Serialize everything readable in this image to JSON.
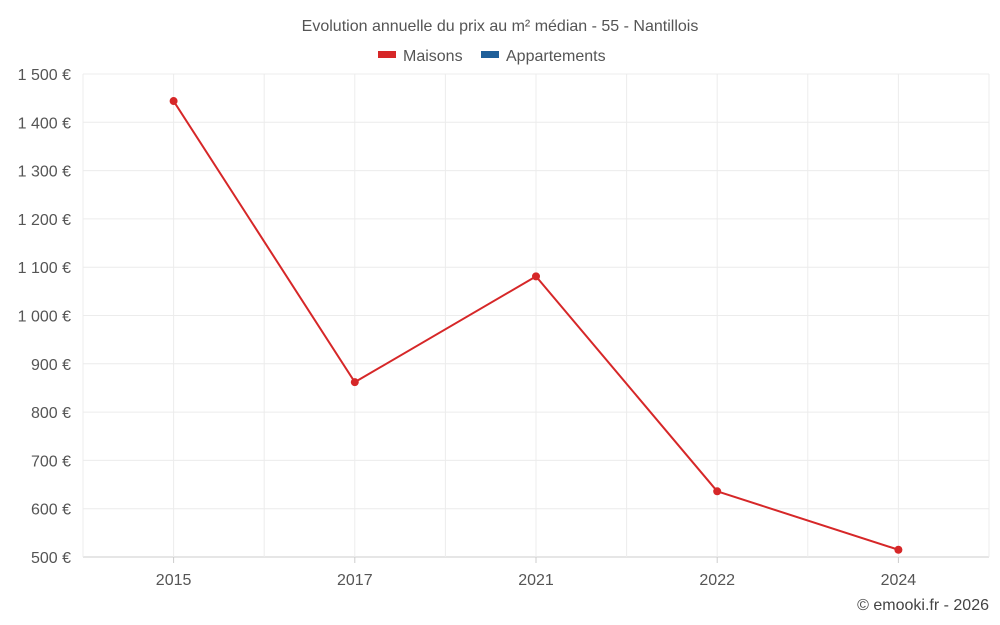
{
  "chart_data": {
    "type": "line",
    "title": "Evolution annuelle du prix au m² médian - 55 - Nantillois",
    "categories": [
      "2015",
      "2017",
      "2021",
      "2022",
      "2024"
    ],
    "series": [
      {
        "name": "Maisons",
        "color": "#d62728",
        "values": [
          1444,
          862,
          1081,
          636,
          515
        ]
      },
      {
        "name": "Appartements",
        "color": "#1f5f99",
        "values": [
          null,
          null,
          null,
          null,
          null
        ]
      }
    ],
    "y_ticks": [
      500,
      600,
      700,
      800,
      900,
      1000,
      1100,
      1200,
      1300,
      1400,
      1500
    ],
    "y_tick_labels": [
      "500 €",
      "600 €",
      "700 €",
      "800 €",
      "900 €",
      "1 000 €",
      "1 100 €",
      "1 200 €",
      "1 300 €",
      "1 400 €",
      "1 500 €"
    ],
    "ylim": [
      500,
      1500
    ],
    "grid": true,
    "legend_position": "top-center",
    "xlabel": "",
    "ylabel": ""
  },
  "credit": "© emooki.fr - 2026"
}
